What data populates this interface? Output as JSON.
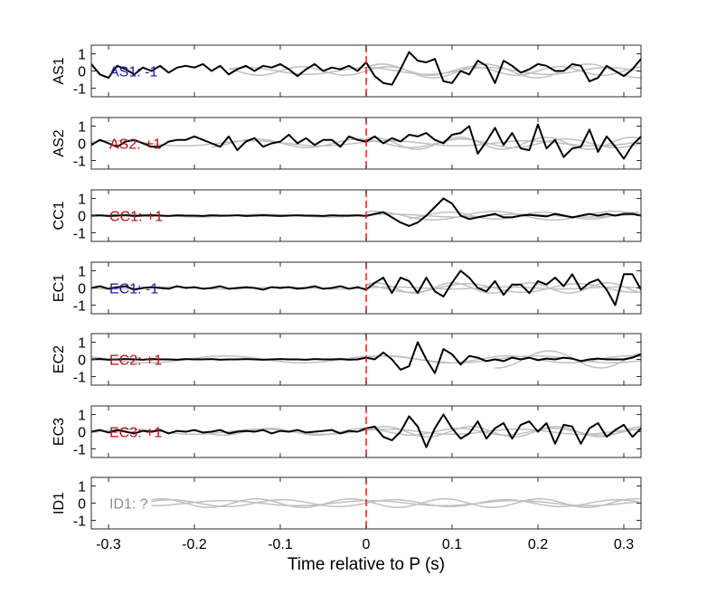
{
  "chart_data": {
    "type": "line",
    "xlabel": "Time relative to P (s)",
    "xlim": [
      -0.32,
      0.32
    ],
    "xticks": [
      -0.3,
      -0.2,
      -0.1,
      0,
      0.1,
      0.2,
      0.3
    ],
    "xtick_labels": [
      "-0.3",
      "-0.2",
      "-0.1",
      "0",
      "0.1",
      "0.2",
      "0.3"
    ],
    "ylim": [
      -1.5,
      1.5
    ],
    "yticks": [
      -1,
      0,
      1
    ],
    "ytick_labels": [
      "-1",
      "0",
      "1"
    ],
    "marker_x": 0,
    "marker_color": "#e8211b",
    "main_color": "#000000",
    "background_color": "#c0c0c0",
    "label_colors": {
      "blue": "#1a1aa6",
      "red": "#b01212",
      "gray": "#8c8c8c"
    },
    "panels": [
      {
        "ylabel": "AS1",
        "annotation": "AS1: -1",
        "annotation_color": "blue",
        "series_x_start": -0.32,
        "series_x_step": 0.01,
        "series": [
          0.4,
          -0.2,
          -0.4,
          0.3,
          0.1,
          -0.2,
          0.2,
          0.0,
          0.3,
          -0.1,
          0.2,
          0.3,
          0.2,
          0.4,
          0.0,
          0.3,
          -0.2,
          0.1,
          0.3,
          0.0,
          0.3,
          0.2,
          0.4,
          0.1,
          -0.3,
          0.1,
          0.4,
          0.0,
          0.2,
          0.1,
          0.3,
          0.0,
          0.5,
          -0.3,
          -0.7,
          -0.8,
          0.1,
          1.1,
          0.6,
          0.5,
          0.7,
          -0.6,
          -0.7,
          0.0,
          -0.2,
          0.6,
          0.3,
          -0.7,
          0.6,
          0.3,
          -0.1,
          0.1,
          0.4,
          0.3,
          0.0,
          0.0,
          0.4,
          0.3,
          -0.6,
          -0.4,
          0.3,
          0.0,
          -0.3,
          0.1,
          0.7,
          0.6,
          0.3,
          -0.6
        ],
        "background_series": [
          {
            "x_start": -0.16,
            "amp": 0.25,
            "period": 0.1,
            "phase": 0.0
          },
          {
            "x_start": -0.16,
            "amp": 0.2,
            "period": 0.14,
            "phase": 1.5
          },
          {
            "x_start": 0.0,
            "amp": 0.4,
            "period": 0.12,
            "phase": 0.6
          }
        ]
      },
      {
        "ylabel": "AS2",
        "annotation": "AS2: +1",
        "annotation_color": "red",
        "series_x_start": -0.32,
        "series_x_step": 0.01,
        "series": [
          -0.1,
          0.2,
          0.0,
          -0.2,
          0.1,
          0.2,
          0.0,
          -0.2,
          -0.2,
          0.1,
          0.2,
          0.2,
          0.4,
          0.2,
          0.0,
          -0.2,
          0.4,
          -0.4,
          0.1,
          0.3,
          -0.2,
          0.0,
          0.1,
          0.5,
          0.0,
          0.3,
          -0.1,
          0.2,
          0.2,
          -0.2,
          0.4,
          0.2,
          0.1,
          0.4,
          0.0,
          0.3,
          0.1,
          0.5,
          0.4,
          0.6,
          0.2,
          0.0,
          0.5,
          0.6,
          1.0,
          -0.6,
          0.1,
          0.9,
          -0.1,
          0.6,
          -0.3,
          -0.4,
          1.1,
          -0.3,
          0.2,
          -0.8,
          -0.3,
          -0.2,
          0.8,
          -0.5,
          0.4,
          -0.2,
          -0.9,
          -0.1,
          0.4,
          0.3,
          -0.3,
          -0.2,
          -0.8
        ],
        "background_series": [
          {
            "x_start": -0.32,
            "amp": 0.15,
            "period": 0.16,
            "phase": 0.5
          },
          {
            "x_start": -0.18,
            "amp": 0.25,
            "period": 0.12,
            "phase": 2.0
          },
          {
            "x_start": 0.0,
            "amp": 0.35,
            "period": 0.1,
            "phase": 1.0
          }
        ]
      },
      {
        "ylabel": "CC1",
        "annotation": "CC1: +1",
        "annotation_color": "red",
        "series_x_start": -0.32,
        "series_x_step": 0.01,
        "series": [
          0.0,
          0.02,
          -0.02,
          0.0,
          0.02,
          -0.02,
          0.0,
          0.02,
          0.0,
          -0.02,
          0.02,
          0.0,
          0.0,
          -0.02,
          0.02,
          0.0,
          0.0,
          0.02,
          -0.02,
          0.0,
          0.02,
          0.0,
          -0.02,
          0.0,
          0.02,
          0.0,
          0.0,
          -0.02,
          0.02,
          0.0,
          0.0,
          0.02,
          -0.02,
          0.1,
          0.2,
          -0.1,
          -0.4,
          -0.6,
          -0.4,
          0.0,
          0.5,
          1.0,
          0.7,
          0.0,
          -0.2,
          -0.1,
          0.0,
          0.1,
          -0.1,
          -0.1,
          0.0,
          0.05,
          0.0,
          -0.05,
          0.1,
          0.0,
          -0.1,
          0.0,
          0.1,
          0.0,
          0.1,
          0.0,
          0.1,
          0.1,
          0.0
        ],
        "background_series": [
          {
            "x_start": -0.32,
            "amp": 0.08,
            "period": 0.15,
            "phase": 0.3
          },
          {
            "x_start": 0.0,
            "amp": 0.25,
            "period": 0.14,
            "phase": 1.2
          },
          {
            "x_start": 0.05,
            "amp": 0.2,
            "period": 0.11,
            "phase": 2.4
          }
        ]
      },
      {
        "ylabel": "EC1",
        "annotation": "EC1: -1",
        "annotation_color": "blue",
        "series_x_start": -0.32,
        "series_x_step": 0.01,
        "series": [
          0.0,
          0.1,
          -0.05,
          0.05,
          0.1,
          -0.1,
          0.0,
          0.05,
          0.0,
          -0.05,
          0.1,
          0.0,
          0.05,
          -0.05,
          0.0,
          0.1,
          -0.05,
          0.0,
          0.05,
          0.0,
          -0.1,
          0.05,
          0.0,
          0.05,
          -0.05,
          0.0,
          0.1,
          -0.05,
          0.0,
          0.1,
          -0.05,
          0.05,
          -0.1,
          0.3,
          0.6,
          -0.3,
          0.6,
          0.4,
          -0.3,
          0.6,
          -0.2,
          -0.5,
          0.3,
          1.0,
          0.6,
          0.0,
          -0.2,
          0.4,
          -0.4,
          0.2,
          0.2,
          -0.3,
          0.4,
          0.2,
          0.6,
          0.1,
          0.8,
          -0.1,
          0.3,
          0.5,
          -0.1,
          -1.0,
          0.8,
          0.8,
          -0.1,
          0.3
        ],
        "background_series": [
          {
            "x_start": -0.32,
            "amp": 0.06,
            "period": 0.13,
            "phase": 0.0
          },
          {
            "x_start": 0.0,
            "amp": 0.3,
            "period": 0.09,
            "phase": 0.8
          },
          {
            "x_start": 0.0,
            "amp": 0.25,
            "period": 0.13,
            "phase": 2.2
          }
        ]
      },
      {
        "ylabel": "EC2",
        "annotation": "EC2: +1",
        "annotation_color": "red",
        "series_x_start": -0.32,
        "series_x_step": 0.01,
        "series": [
          0.0,
          0.02,
          -0.02,
          0.0,
          0.02,
          0.0,
          -0.02,
          0.02,
          0.0,
          0.0,
          -0.02,
          0.02,
          0.0,
          0.0,
          0.02,
          -0.02,
          0.0,
          0.0,
          0.02,
          0.0,
          -0.02,
          0.0,
          0.02,
          0.0,
          0.0,
          -0.02,
          0.02,
          0.0,
          0.0,
          0.02,
          -0.02,
          0.0,
          0.1,
          0.0,
          0.4,
          0.0,
          -0.6,
          -0.4,
          1.0,
          0.0,
          -0.8,
          0.6,
          0.3,
          -0.3,
          0.2,
          0.1,
          -0.1,
          0.0,
          -0.1,
          0.1,
          0.0,
          0.1,
          -0.05,
          0.05,
          0.0,
          0.1,
          0.05,
          -0.1,
          0.0,
          0.05,
          0.0,
          0.0,
          0.0,
          0.1,
          0.3
        ],
        "background_series": [
          {
            "x_start": -0.32,
            "amp": 0.2,
            "period": 0.18,
            "phase": 1.0
          },
          {
            "x_start": 0.0,
            "amp": 0.2,
            "period": 0.14,
            "phase": 0.4
          },
          {
            "x_start": 0.15,
            "amp": 0.5,
            "period": 0.12,
            "phase": 3.0
          }
        ]
      },
      {
        "ylabel": "EC3",
        "annotation": "EC3: +1",
        "annotation_color": "red",
        "series_x_start": -0.32,
        "series_x_step": 0.01,
        "series": [
          0.0,
          0.1,
          -0.05,
          0.1,
          0.0,
          -0.1,
          0.05,
          0.0,
          0.1,
          -0.1,
          0.05,
          0.0,
          0.1,
          -0.05,
          0.0,
          0.1,
          -0.1,
          0.0,
          0.05,
          0.0,
          0.1,
          -0.1,
          0.05,
          0.0,
          0.1,
          -0.05,
          0.0,
          0.05,
          0.1,
          -0.1,
          0.05,
          0.0,
          0.2,
          0.3,
          -0.3,
          -0.5,
          0.0,
          0.9,
          0.3,
          -0.9,
          0.2,
          1.0,
          0.2,
          -0.4,
          -0.1,
          0.6,
          -0.4,
          0.2,
          0.5,
          -0.4,
          0.4,
          0.6,
          0.0,
          0.5,
          -0.7,
          0.4,
          0.3,
          -0.7,
          0.2,
          0.5,
          -0.3,
          0.1,
          0.4,
          -0.3,
          0.2,
          0.3
        ],
        "background_series": [
          {
            "x_start": -0.32,
            "amp": 0.15,
            "period": 0.15,
            "phase": 0.5
          },
          {
            "x_start": -0.2,
            "amp": 0.2,
            "period": 0.11,
            "phase": 1.7
          },
          {
            "x_start": 0.0,
            "amp": 0.3,
            "period": 0.1,
            "phase": 0.2
          }
        ]
      },
      {
        "ylabel": "ID1",
        "annotation": "ID1: ?",
        "annotation_color": "gray",
        "series_x_start": -0.32,
        "series_x_step": 0.01,
        "series": [],
        "background_series": [
          {
            "x_start": -0.25,
            "amp": 0.2,
            "period": 0.13,
            "phase": 0.0
          },
          {
            "x_start": -0.25,
            "amp": 0.15,
            "period": 0.17,
            "phase": 1.4
          },
          {
            "x_start": -0.25,
            "amp": 0.25,
            "period": 0.11,
            "phase": 2.6
          }
        ]
      }
    ]
  }
}
